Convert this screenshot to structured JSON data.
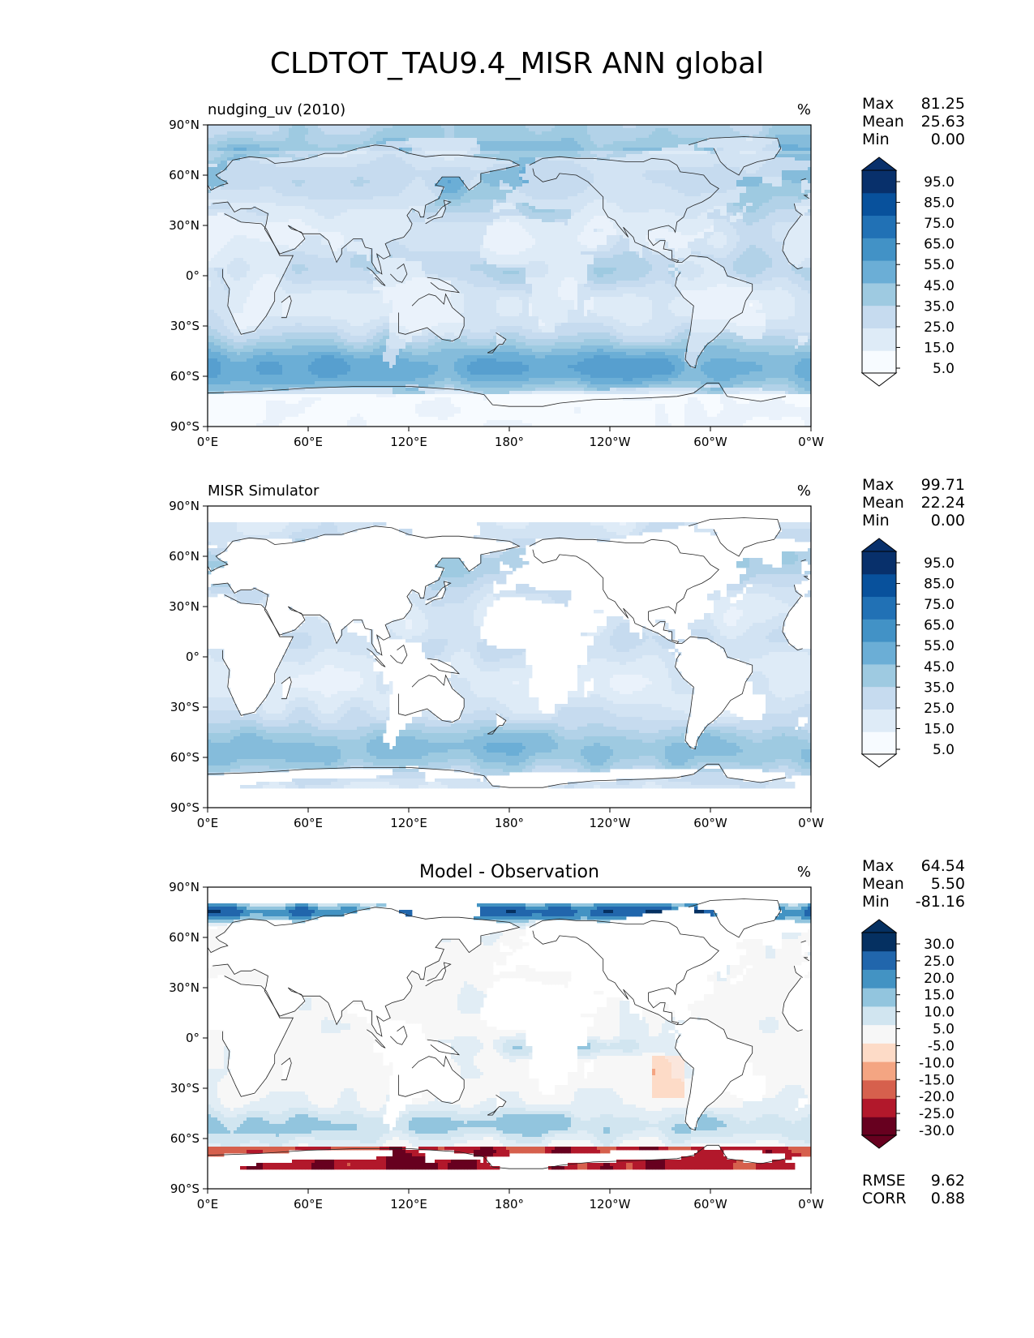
{
  "figure": {
    "title": "CLDTOT_TAU9.4_MISR ANN global"
  },
  "axes": {
    "lat_ticks": [
      "90°N",
      "60°N",
      "30°N",
      "0°",
      "30°S",
      "60°S",
      "90°S"
    ],
    "lon_ticks": [
      "0°E",
      "60°E",
      "120°E",
      "180°",
      "120°W",
      "60°W",
      "0°W"
    ]
  },
  "chart_data": [
    {
      "type": "heatmap",
      "panel": "test",
      "left_title": "nudging_uv (2010)",
      "center_title": "",
      "units": "%",
      "stats_labels": [
        "Max",
        "Mean",
        "Min"
      ],
      "stats_values": [
        "81.25",
        "25.63",
        "0.00"
      ],
      "lon_range": [
        0,
        360
      ],
      "lat_range": [
        -90,
        90
      ],
      "colormap": "Blues",
      "levels": [
        0,
        5,
        10,
        15,
        20,
        25,
        30,
        35,
        40,
        45,
        50,
        55,
        60,
        65,
        70,
        75,
        80,
        85,
        90,
        95,
        100
      ],
      "colorbar_labels": [
        "95.0",
        "85.0",
        "75.0",
        "65.0",
        "55.0",
        "45.0",
        "35.0",
        "25.0",
        "15.0",
        "5.0"
      ],
      "colorbar_colors": [
        "#f7fbff",
        "#deebf7",
        "#c6dbef",
        "#9ecae1",
        "#6baed6",
        "#4292c6",
        "#2171b5",
        "#08519c",
        "#08306b"
      ]
    },
    {
      "type": "heatmap",
      "panel": "reference",
      "left_title": "MISR Simulator",
      "center_title": "",
      "units": "%",
      "stats_labels": [
        "Max",
        "Mean",
        "Min"
      ],
      "stats_values": [
        "99.71",
        "22.24",
        "0.00"
      ],
      "lon_range": [
        0,
        360
      ],
      "lat_range": [
        -90,
        90
      ],
      "colormap": "Blues",
      "levels": [
        0,
        5,
        10,
        15,
        20,
        25,
        30,
        35,
        40,
        45,
        50,
        55,
        60,
        65,
        70,
        75,
        80,
        85,
        90,
        95,
        100
      ],
      "colorbar_labels": [
        "95.0",
        "85.0",
        "75.0",
        "65.0",
        "55.0",
        "45.0",
        "35.0",
        "25.0",
        "15.0",
        "5.0"
      ],
      "colorbar_colors": [
        "#f7fbff",
        "#deebf7",
        "#c6dbef",
        "#9ecae1",
        "#6baed6",
        "#4292c6",
        "#2171b5",
        "#08519c",
        "#08306b"
      ]
    },
    {
      "type": "heatmap",
      "panel": "difference",
      "left_title": "",
      "center_title": "Model - Observation",
      "units": "%",
      "stats_labels": [
        "Max",
        "Mean",
        "Min"
      ],
      "stats_values": [
        "64.54",
        "5.50",
        "-81.16"
      ],
      "metric_labels": [
        "RMSE",
        "CORR"
      ],
      "metric_values": [
        "9.62",
        "0.88"
      ],
      "lon_range": [
        0,
        360
      ],
      "lat_range": [
        -90,
        90
      ],
      "colormap": "RdBu_r",
      "levels": [
        -35,
        -30,
        -25,
        -20,
        -15,
        -10,
        -5,
        5,
        10,
        15,
        20,
        25,
        30,
        35
      ],
      "colorbar_labels": [
        "30.0",
        "25.0",
        "20.0",
        "15.0",
        "10.0",
        "5.0",
        "-5.0",
        "-10.0",
        "-15.0",
        "-20.0",
        "-25.0",
        "-30.0"
      ],
      "colorbar_colors": [
        "#67001f",
        "#b2182b",
        "#d6604d",
        "#f4a582",
        "#fddbc7",
        "#f7f7f7",
        "#d1e5f0",
        "#92c5de",
        "#4393c3",
        "#2166ac",
        "#053061"
      ]
    }
  ]
}
